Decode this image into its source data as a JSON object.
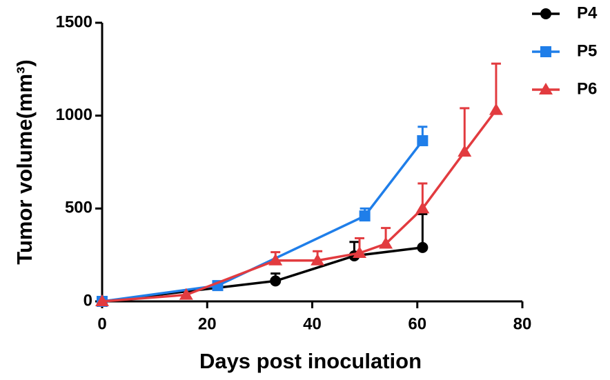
{
  "chart_data": {
    "type": "line",
    "xlabel": "Days post inoculation",
    "ylabel": "Tumor volume(mm³)",
    "xlim": [
      0,
      80
    ],
    "xticks": [
      0,
      20,
      40,
      60,
      80
    ],
    "ylim": [
      0,
      1500
    ],
    "yticks": [
      0,
      500,
      1000,
      1500
    ],
    "legend": "top-right",
    "series": [
      {
        "name": "P4",
        "color": "#000000",
        "marker": "circle",
        "x": [
          0,
          33,
          48,
          61
        ],
        "values": [
          0,
          110,
          245,
          290
        ],
        "errors": [
          null,
          40,
          75,
          180
        ]
      },
      {
        "name": "P5",
        "color": "#1f7ee9",
        "marker": "square",
        "x": [
          0,
          22,
          50,
          61
        ],
        "values": [
          0,
          85,
          460,
          865
        ],
        "errors": [
          null,
          10,
          40,
          75
        ]
      },
      {
        "name": "P6",
        "color": "#e23b3f",
        "marker": "triangle",
        "x": [
          0,
          16,
          33,
          41,
          49,
          54,
          61,
          69,
          75
        ],
        "values": [
          0,
          35,
          220,
          220,
          260,
          310,
          500,
          805,
          1030
        ],
        "errors": [
          null,
          null,
          45,
          50,
          80,
          85,
          135,
          235,
          250
        ]
      }
    ]
  }
}
